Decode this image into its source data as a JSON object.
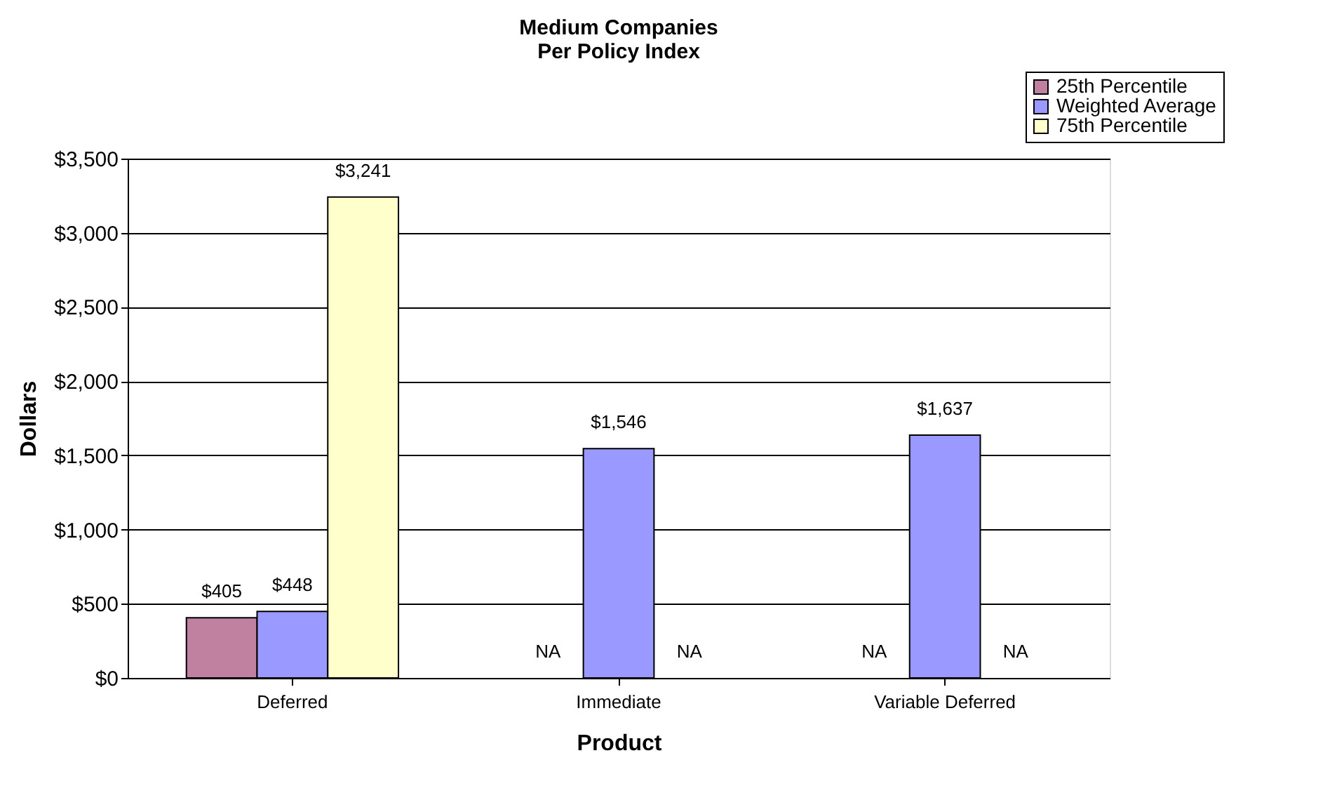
{
  "chart_data": {
    "type": "bar",
    "title": [
      "Medium Companies",
      "Per Policy Index"
    ],
    "xlabel": "Product",
    "ylabel": "Dollars",
    "categories": [
      "Deferred",
      "Immediate",
      "Variable Deferred"
    ],
    "series": [
      {
        "name": "25th Percentile",
        "color": "#c080a0",
        "values": [
          405,
          null,
          null
        ],
        "value_labels": [
          "$405",
          "NA",
          "NA"
        ]
      },
      {
        "name": "Weighted Average",
        "color": "#9999ff",
        "values": [
          448,
          1546,
          1637
        ],
        "value_labels": [
          "$448",
          "$1,546",
          "$1,637"
        ]
      },
      {
        "name": "75th Percentile",
        "color": "#ffffcc",
        "values": [
          3241,
          null,
          null
        ],
        "value_labels": [
          "$3,241",
          "NA",
          "NA"
        ]
      }
    ],
    "ylim": [
      0,
      3500
    ],
    "yticks": [
      {
        "value": 0,
        "label": "$0"
      },
      {
        "value": 500,
        "label": "$500"
      },
      {
        "value": 1000,
        "label": "$1,000"
      },
      {
        "value": 1500,
        "label": "$1,500"
      },
      {
        "value": 2000,
        "label": "$2,000"
      },
      {
        "value": 2500,
        "label": "$2,500"
      },
      {
        "value": 3000,
        "label": "$3,000"
      },
      {
        "value": 3500,
        "label": "$3,500"
      }
    ],
    "grid": "y",
    "legend": "top right"
  }
}
